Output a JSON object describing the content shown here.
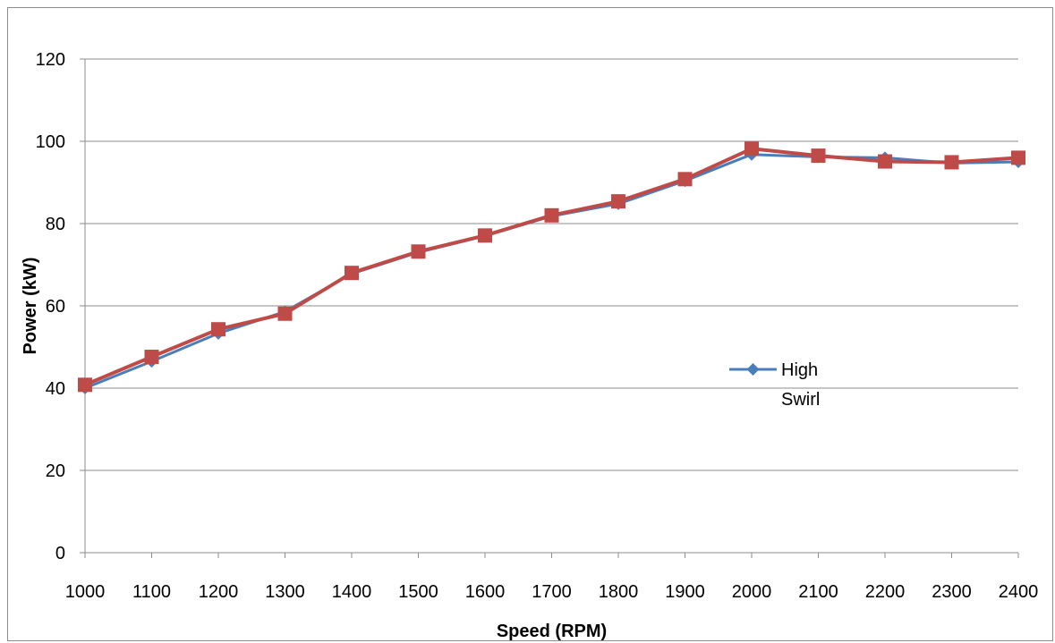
{
  "chart_data": {
    "type": "line",
    "title": "",
    "xlabel": "Speed  (RPM)",
    "ylabel": "Power (kW)",
    "categories": [
      "1000",
      "1100",
      "1200",
      "1300",
      "1400",
      "1500",
      "1600",
      "1700",
      "1800",
      "1900",
      "2000",
      "2100",
      "2200",
      "2300",
      "2400"
    ],
    "ylim": [
      0,
      120
    ],
    "yticks": [
      "0",
      "20",
      "40",
      "60",
      "80",
      "100",
      "120"
    ],
    "grid": "horizontal",
    "legend_position": "right",
    "series": [
      {
        "name": "High Swirl",
        "legend_lines": [
          "High",
          "Swirl"
        ],
        "color": "#4a7ebb",
        "marker": "diamond",
        "values": [
          40.0,
          46.5,
          53.3,
          58.6,
          67.8,
          73.0,
          77.0,
          81.8,
          84.8,
          90.4,
          96.8,
          96.2,
          96.0,
          94.7,
          95.0
        ]
      },
      {
        "name": "",
        "color": "#be4b48",
        "marker": "square",
        "values": [
          40.8,
          47.6,
          54.3,
          58.1,
          68.0,
          73.2,
          77.1,
          82.0,
          85.4,
          90.8,
          98.2,
          96.5,
          95.1,
          94.9,
          96.0
        ]
      }
    ]
  }
}
